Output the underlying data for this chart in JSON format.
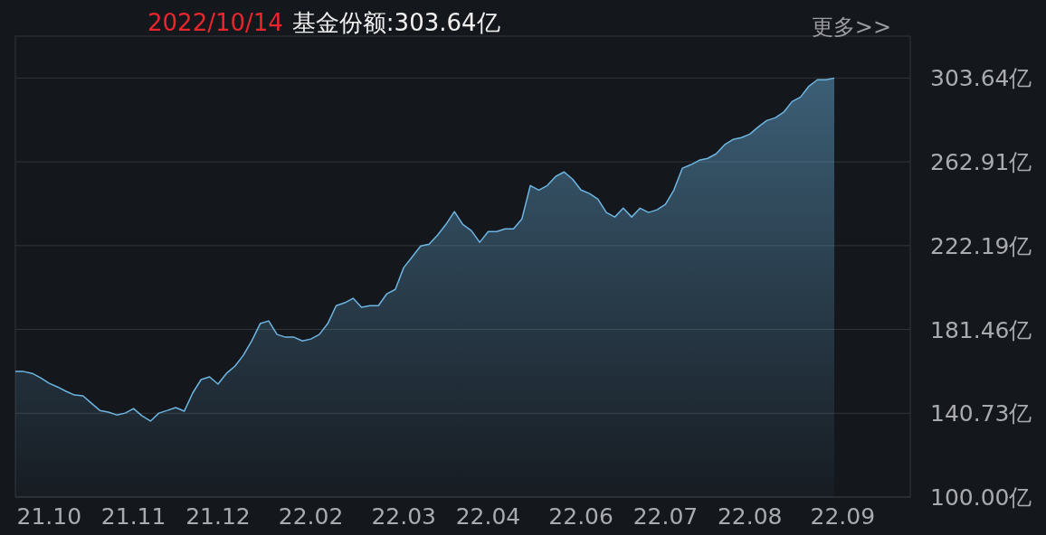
{
  "chart_data": {
    "type": "area",
    "title": "2022/10/14",
    "subtitle": "基金份额:303.64亿",
    "annotations": [
      "更多>>"
    ],
    "categories": [
      null,
      null,
      null,
      null,
      "21.10",
      null,
      null,
      null,
      null,
      null,
      null,
      null,
      null,
      null,
      "21.11",
      null,
      null,
      null,
      null,
      null,
      null,
      null,
      null,
      null,
      "21.12",
      null,
      null,
      null,
      null,
      null,
      null,
      null,
      null,
      null,
      null,
      "22.02",
      null,
      null,
      null,
      null,
      null,
      null,
      null,
      null,
      null,
      null,
      "22.03",
      null,
      null,
      null,
      null,
      null,
      null,
      null,
      null,
      null,
      "22.04",
      null,
      null,
      null,
      null,
      null,
      null,
      null,
      null,
      null,
      null,
      "22.06",
      null,
      null,
      null,
      null,
      null,
      null,
      null,
      null,
      null,
      "22.07",
      null,
      null,
      null,
      null,
      null,
      null,
      null,
      null,
      null,
      "22.08",
      null,
      null,
      null,
      null,
      null,
      null,
      null,
      null,
      null,
      null,
      "22.09",
      null,
      null,
      null,
      null,
      null,
      null,
      null,
      null
    ],
    "series": [
      {
        "color": "#6db6e3",
        "values": [
          161.0,
          161.0,
          160.1,
          157.9,
          155.3,
          153.5,
          151.4,
          149.6,
          149.2,
          145.6,
          142.1,
          141.3,
          139.9,
          140.8,
          143.0,
          139.5,
          136.9,
          140.8,
          142.1,
          143.5,
          141.7,
          150.5,
          157.1,
          158.4,
          154.9,
          160.1,
          163.6,
          168.9,
          175.9,
          184.3,
          185.6,
          179.0,
          177.7,
          177.7,
          175.9,
          176.8,
          179.0,
          184.3,
          193.0,
          194.4,
          196.6,
          192.2,
          193.0,
          193.0,
          198.8,
          200.9,
          211.5,
          216.7,
          222.0,
          222.9,
          227.3,
          232.5,
          238.7,
          232.5,
          229.5,
          223.8,
          229.0,
          229.0,
          230.3,
          230.3,
          235.2,
          251.4,
          249.2,
          251.4,
          255.8,
          258.0,
          254.5,
          249.2,
          247.5,
          244.8,
          238.3,
          236.1,
          240.4,
          236.1,
          240.4,
          238.3,
          239.6,
          242.2,
          249.2,
          259.8,
          261.5,
          263.7,
          264.6,
          266.8,
          271.2,
          273.8,
          274.7,
          276.4,
          279.9,
          283.0,
          284.3,
          287.0,
          292.2,
          294.4,
          299.7,
          302.8,
          302.8,
          303.64,
          null,
          null,
          null,
          null,
          null,
          null,
          null,
          null,
          null
        ]
      }
    ],
    "ylim": [
      100,
      324
    ],
    "yticks": [
      {
        "value": 100,
        "label": "100.00亿"
      },
      {
        "value": 140.73,
        "label": "140.73亿"
      },
      {
        "value": 181.46,
        "label": "181.46亿"
      },
      {
        "value": 222.19,
        "label": "222.19亿"
      },
      {
        "value": 262.91,
        "label": "262.91亿"
      },
      {
        "value": 303.64,
        "label": "303.64亿"
      }
    ],
    "grid": "y"
  }
}
